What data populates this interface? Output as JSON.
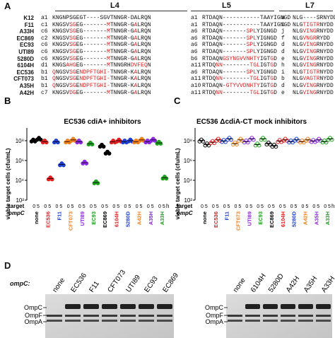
{
  "panel_a": {
    "letter": "A",
    "loops": [
      "L4",
      "L5",
      "L7"
    ],
    "rows": [
      {
        "strain": "K12",
        "l4": {
          "allele": "a1",
          "seq": "KNGNPSGEGT----SGVTNNGR-DALRQN",
          "red": ""
        },
        "l5": {
          "allele": "a1",
          "seq": "RTDAQN-----------TAAYIGNGD",
          "red": ""
        },
        "l7": {
          "allele": "a",
          "seq": "NLG----SRNYDD",
          "red": ""
        }
      },
      {
        "strain": "F11",
        "l4": {
          "allele": "c1",
          "seq": "KNGSVSGEG-------MTNNGR-GALRQN",
          "red": "0000011000000000100000001000000"
        },
        "l5": {
          "allele": "a1",
          "seq": "RTDAQN-----------TAAYIGNGD",
          "red": ""
        },
        "l7": {
          "allele": "i",
          "seq": "NLGTIGTRNYDD",
          "red": "000111110000"
        }
      },
      {
        "strain": "A33H",
        "l4": {
          "allele": "c6",
          "seq": "KNGSVSGEG-------MTNNGR-GALRQN",
          "red": "0000011000000000100000001000000"
        },
        "l5": {
          "allele": "a6",
          "seq": "RTDAQN-------SPLYIGNGD",
          "red": "0000000000000111000000"
        },
        "l7": {
          "allele": "j",
          "seq": "NLGVINGRNYDD",
          "red": "000111100000"
        }
      },
      {
        "strain": "EC869",
        "l4": {
          "allele": "c2",
          "seq": "KNGSVSGEG-------MTNNGR-GALRQN",
          "red": "0000011000000000100000001000000"
        },
        "l5": {
          "allele": "a6",
          "seq": "RTDAQN-------SPLYIGNGD",
          "red": "0000000000000111000000"
        },
        "l7": {
          "allele": "f",
          "seq": "NLGVNGRRYDD",
          "red": "00011110000"
        }
      },
      {
        "strain": "EC93",
        "l4": {
          "allele": "c6",
          "seq": "KNGSVSGEG-------MTNNGR-GALRQN",
          "red": "0000011000000000100000001000000"
        },
        "l5": {
          "allele": "a6",
          "seq": "RTDAQN-------SPLYIGNGD",
          "red": "0000000000000111000000"
        },
        "l7": {
          "allele": "d",
          "seq": "NLGVINGRNYDD",
          "red": "000111100000"
        }
      },
      {
        "strain": "UTI89",
        "l4": {
          "allele": "c6",
          "seq": "KNGSVSGEG-------MTNNGR-GALRQN",
          "red": "0000011000000000100000001000000"
        },
        "l5": {
          "allele": "a6",
          "seq": "RTDAQN-------SPLYIGNGD",
          "red": "0000000000000111000000"
        },
        "l7": {
          "allele": "d",
          "seq": "NLGVINGRNYDD",
          "red": "000111100000"
        }
      },
      {
        "strain": "5280D",
        "l4": {
          "allele": "c6",
          "seq": "KNGSVSGEG-------MTNNGR-GALRQN",
          "red": "0000011000000000100000001000000"
        },
        "l5": {
          "allele": "b6",
          "seq": "RTDAQNGSYNGVVNHTYIGTGD",
          "red": "0000001111111111100010"
        },
        "l7": {
          "allele": "e",
          "seq": "NLGVINGRNYDD",
          "red": "000111100000"
        }
      },
      {
        "strain": "6104H",
        "l4": {
          "allele": "d1",
          "seq": "KNGSAHGEG-------MTNNGRHDVFEQN",
          "red": "0000111000000000100000011111000"
        },
        "l5": {
          "allele": "a11",
          "seq": "RTDQNN--------TGLIGTGD",
          "red": "0000110000000011100010"
        },
        "l7": {
          "allele": "h",
          "seq": "NLGVINGRNYDD",
          "red": "000111100000"
        }
      },
      {
        "strain": "EC536",
        "l4": {
          "allele": "b1",
          "seq": "QNGSVSGENDPFTGHI-TNNGR-KALRQN",
          "red": "1000011011111111100000001000000"
        },
        "l5": {
          "allele": "a6",
          "seq": "RTDAQN-------SPLYIGNGD",
          "red": "0000000000000111000000"
        },
        "l7": {
          "allele": "i",
          "seq": "NLGTIGTRNYDD",
          "red": "000111110000"
        }
      },
      {
        "strain": "CFT073",
        "l4": {
          "allele": "b1",
          "seq": "QNGSVSGENDPFTGHI-TNNGR-KALRQN",
          "red": "1000011011111111100000001000000"
        },
        "l5": {
          "allele": "a11",
          "seq": "RTDQNN--------TGLIGTGD",
          "red": "0000110000000011100010"
        },
        "l7": {
          "allele": "b",
          "seq": "NLGVAGTRNYDD",
          "red": "000111110000"
        }
      },
      {
        "strain": "A35H",
        "l4": {
          "allele": "b1",
          "seq": "QNGSVSGENDPFTGHI-TNNGR-KALRQN",
          "red": "1000011011111111100000001000000"
        },
        "l5": {
          "allele": "a10",
          "seq": "RTDAQN-GTYVVDNHTYIGTGD",
          "red": "0000000111111111100010"
        },
        "l7": {
          "allele": "d",
          "seq": "NLGVINGRNYDD",
          "red": "000111100000"
        }
      },
      {
        "strain": "A42H",
        "l4": {
          "allele": "c7",
          "seq": "KNGSVDGEG-------MTNNGR-GALRQN",
          "red": "0000011000000000100000001000000"
        },
        "l5": {
          "allele": "a11",
          "seq": "RTDQNN--------TGLIGTGD",
          "red": "0000110000000011100010"
        },
        "l7": {
          "allele": "e",
          "seq": "NLGVINGRNYDD",
          "red": "000111100000"
        }
      }
    ]
  },
  "panel_b": {
    "letter": "B",
    "title": "EC536 cdiA+ inhibitors"
  },
  "panel_c": {
    "letter": "C",
    "title": "EC536 ΔcdiA-CT mock inhibitors"
  },
  "shared_axes": {
    "ylabel": "viable target cells (cfu/mL)",
    "yticks": [
      "10⁸",
      "10⁶",
      "10⁴",
      "10²"
    ],
    "target_label": "target",
    "ompc_label": "ompC",
    "time_labels": "0 5",
    "h_label": "h",
    "targets": [
      {
        "name": "none",
        "color": "#000000"
      },
      {
        "name": "EC536",
        "color": "#e02020"
      },
      {
        "name": "F11",
        "color": "#1f3fd0"
      },
      {
        "name": "CFT073",
        "color": "#f08020"
      },
      {
        "name": "UTI89",
        "color": "#8a2be2"
      },
      {
        "name": "EC93",
        "color": "#20a020"
      },
      {
        "name": "EC869",
        "color": "#000000"
      },
      {
        "name": "6104H",
        "color": "#e02020"
      },
      {
        "name": "5280D",
        "color": "#1f3fd0"
      },
      {
        "name": "A42H",
        "color": "#f08020"
      },
      {
        "name": "A35H",
        "color": "#8a2be2"
      },
      {
        "name": "A33H",
        "color": "#20a020"
      }
    ]
  },
  "chart_data": [
    {
      "type": "scatter",
      "title": "EC536 cdiA+ inhibitors",
      "ylabel": "viable target cells (cfu/mL)",
      "yscale": "log",
      "ylim": [
        100.0,
        1000000000.0
      ],
      "categories": [
        "none",
        "EC536",
        "F11",
        "CFT073",
        "UTI89",
        "EC93",
        "EC869",
        "6104H",
        "5280D",
        "A42H",
        "A35H",
        "A33H"
      ],
      "series": [
        {
          "name": "0",
          "values": [
            100000000.0,
            80000000.0,
            80000000.0,
            80000000.0,
            80000000.0,
            50000000.0,
            30000000.0,
            80000000.0,
            80000000.0,
            80000000.0,
            80000000.0,
            60000000.0
          ]
        },
        {
          "name": "5",
          "values": [
            150000000.0,
            15000.0,
            400000.0,
            120000000.0,
            600000.0,
            6000.0,
            6000000.0,
            100000000.0,
            100000000.0,
            120000000.0,
            120000000.0,
            18000.0
          ]
        }
      ]
    },
    {
      "type": "scatter",
      "title": "EC536 ΔcdiA-CT mock inhibitors",
      "ylabel": "viable target cells (cfu/mL)",
      "yscale": "log",
      "ylim": [
        100.0,
        1000000000.0
      ],
      "categories": [
        "none",
        "EC536",
        "F11",
        "CFT073",
        "UTI89",
        "EC93",
        "EC869",
        "6104H",
        "5280D",
        "A42H",
        "A35H",
        "A33H"
      ],
      "series": [
        {
          "name": "0",
          "values": [
            100000000.0,
            70000000.0,
            90000000.0,
            50000000.0,
            80000000.0,
            40000000.0,
            50000000.0,
            90000000.0,
            80000000.0,
            80000000.0,
            90000000.0,
            80000000.0
          ]
        },
        {
          "name": "5",
          "values": [
            40000000.0,
            120000000.0,
            150000000.0,
            120000000.0,
            150000000.0,
            150000000.0,
            30000000.0,
            120000000.0,
            120000000.0,
            120000000.0,
            120000000.0,
            150000000.0
          ]
        }
      ]
    }
  ],
  "panel_d": {
    "letter": "D",
    "ompc_label": "ompC:",
    "blot1_lanes": [
      "none",
      "EC536",
      "F11",
      "CFT073",
      "UTI89",
      "EC93",
      "EC869"
    ],
    "blot2_lanes": [
      "none",
      "6104H",
      "5280D",
      "A42H",
      "A35H",
      "A33H"
    ],
    "band_labels": [
      "OmpC",
      "OmpF",
      "OmpA"
    ]
  }
}
